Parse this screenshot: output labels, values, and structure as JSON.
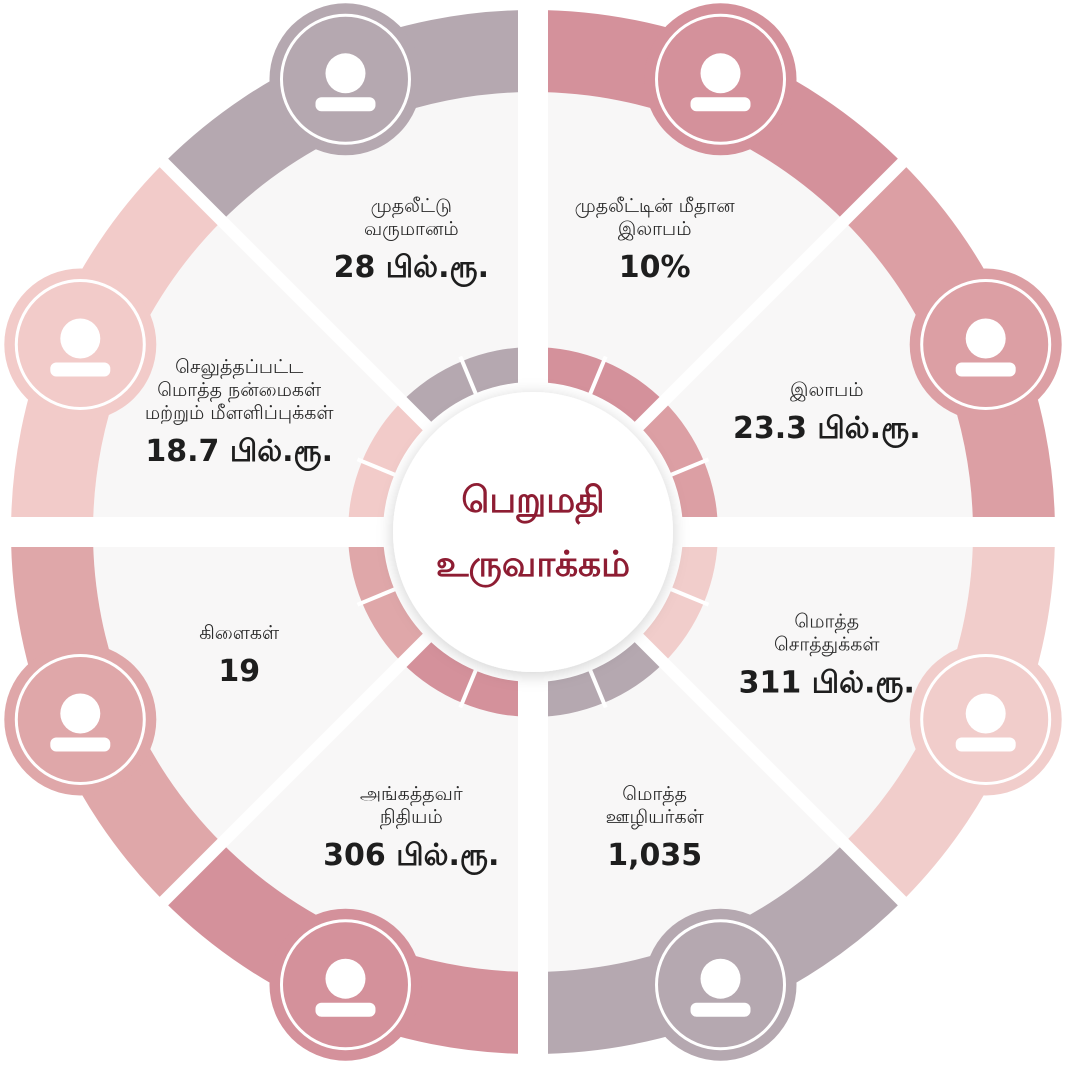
{
  "title": [
    "பெறுமதி",
    "உருவாக்கம்"
  ],
  "segments": [
    {
      "label": [
        "முதலீட்டு",
        "வருமானம்"
      ],
      "value": "28 பில்.ரூ.",
      "color": "#b5a8b0"
    },
    {
      "label": [
        "முதலீட்டின் மீதான",
        "இலாபம்"
      ],
      "value": "10%",
      "color": "#d4919b"
    },
    {
      "label": [
        "இலாபம்"
      ],
      "value": "23.3 பில்.ரூ.",
      "color": "#dc9fa4"
    },
    {
      "label": [
        "மொத்த",
        "சொத்துக்கள்"
      ],
      "value": "311 பில்.ரூ.",
      "color": "#f1cdcb"
    },
    {
      "label": [
        "மொத்த",
        "ஊழியர்கள்"
      ],
      "value": "1,035",
      "color": "#b5a8b0"
    },
    {
      "label": [
        "அங்கத்தவர்",
        "நிதியம்"
      ],
      "value": "306 பில்.ரூ.",
      "color": "#d4919b"
    },
    {
      "label": [
        "கிளைகள்"
      ],
      "value": "19",
      "color": "#dfa7a9"
    },
    {
      "label": [
        "செலுத்தப்பட்ட",
        "மொத்த நன்மைகள்",
        "மற்றும் மீளளிப்புக்கள்"
      ],
      "value": "18.7 பில்.ரூ.",
      "color": "#f2cbc9"
    }
  ]
}
